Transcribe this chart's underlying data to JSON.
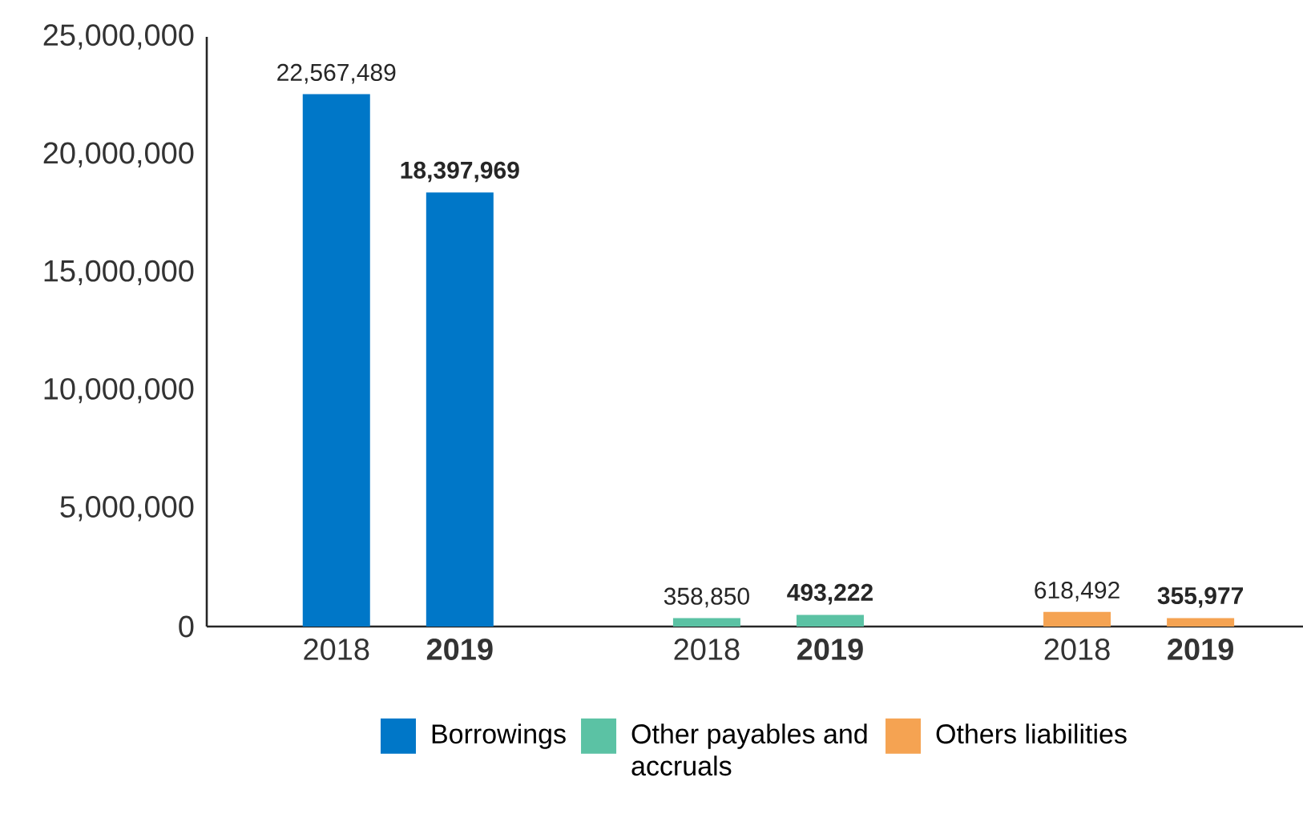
{
  "chart_data": {
    "type": "bar",
    "categories": [
      "2018",
      "2019",
      null,
      "2018",
      "2019",
      null,
      "2018",
      "2019"
    ],
    "series": [
      {
        "name": "Borrowings",
        "color": "#0077c8",
        "values": [
          22567489,
          18397969,
          null,
          null,
          null,
          null,
          null,
          null
        ],
        "value_labels": [
          "22,567,489",
          "18,397,969",
          null,
          null,
          null,
          null,
          null,
          null
        ]
      },
      {
        "name": "Other payables and accruals",
        "color": "#5bc2a4",
        "values": [
          null,
          null,
          null,
          358850,
          493222,
          null,
          null,
          null
        ],
        "value_labels": [
          null,
          null,
          null,
          "358,850",
          "493,222",
          null,
          null,
          null
        ]
      },
      {
        "name": "Others liabilities",
        "color": "#f5a352",
        "values": [
          null,
          null,
          null,
          null,
          null,
          null,
          618492,
          355977
        ],
        "value_labels": [
          null,
          null,
          null,
          null,
          null,
          null,
          "618,492",
          "355,977"
        ]
      }
    ],
    "ylim": [
      0,
      25000000
    ],
    "yticks": [
      0,
      {
        "value": 5000000,
        "label": "5,000,000"
      },
      {
        "value": 10000000,
        "label": "10,000,000"
      },
      {
        "value": 15000000,
        "label": "15,000,000"
      },
      {
        "value": 20000000,
        "label": "20,000,000"
      },
      {
        "value": 25000000,
        "label": "25,000,000"
      }
    ],
    "grid": false,
    "legend": "bottom"
  }
}
